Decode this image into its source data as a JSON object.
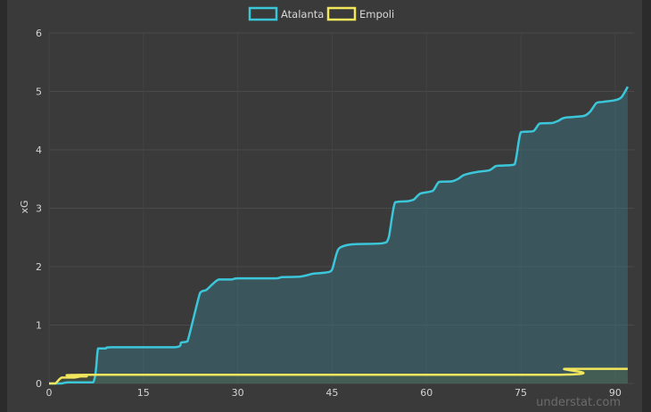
{
  "chart_data": {
    "type": "line",
    "ylabel": "xG",
    "xlim": [
      0,
      93
    ],
    "ylim": [
      0,
      6
    ],
    "x_ticks": [
      "0",
      "15",
      "30",
      "45",
      "60",
      "75",
      "90"
    ],
    "y_ticks": [
      "0",
      "1",
      "2",
      "3",
      "4",
      "5",
      "6"
    ],
    "legend_position": "top-center",
    "grid": true,
    "series": [
      {
        "name": "Atalanta",
        "color": "#3cc6d9",
        "fill": "rgba(60,120,135,0.45)",
        "points": [
          [
            0,
            0
          ],
          [
            2,
            0
          ],
          [
            3,
            0.02
          ],
          [
            7,
            0.02
          ],
          [
            7.8,
            0.6
          ],
          [
            9,
            0.6
          ],
          [
            10,
            0.62
          ],
          [
            20,
            0.62
          ],
          [
            21,
            0.7
          ],
          [
            22,
            0.72
          ],
          [
            24,
            1.55
          ],
          [
            25,
            1.6
          ],
          [
            26,
            1.7
          ],
          [
            27,
            1.78
          ],
          [
            29,
            1.78
          ],
          [
            30,
            1.8
          ],
          [
            36,
            1.8
          ],
          [
            37,
            1.82
          ],
          [
            40,
            1.83
          ],
          [
            42,
            1.88
          ],
          [
            44,
            1.9
          ],
          [
            45,
            1.95
          ],
          [
            46,
            2.3
          ],
          [
            48,
            2.38
          ],
          [
            53,
            2.4
          ],
          [
            54,
            2.5
          ],
          [
            55,
            3.1
          ],
          [
            57,
            3.12
          ],
          [
            58,
            3.15
          ],
          [
            59,
            3.25
          ],
          [
            61,
            3.3
          ],
          [
            62,
            3.45
          ],
          [
            64,
            3.46
          ],
          [
            65,
            3.5
          ],
          [
            66,
            3.57
          ],
          [
            68,
            3.62
          ],
          [
            70,
            3.65
          ],
          [
            71,
            3.72
          ],
          [
            72,
            3.73
          ],
          [
            74,
            3.75
          ],
          [
            75,
            4.3
          ],
          [
            77,
            4.32
          ],
          [
            78,
            4.45
          ],
          [
            80,
            4.46
          ],
          [
            81,
            4.5
          ],
          [
            82,
            4.55
          ],
          [
            85,
            4.58
          ],
          [
            86,
            4.65
          ],
          [
            87,
            4.8
          ],
          [
            88,
            4.82
          ],
          [
            90,
            4.85
          ],
          [
            91,
            4.9
          ],
          [
            92,
            5.08
          ]
        ]
      },
      {
        "name": "Empoli",
        "color": "#f2e75c",
        "fill": "rgba(90,110,70,0.35)",
        "points": [
          [
            0,
            0
          ],
          [
            1,
            0
          ],
          [
            2,
            0.1
          ],
          [
            4,
            0.1
          ],
          [
            5,
            0.12
          ],
          [
            6,
            0.12
          ],
          [
            7,
            0.15
          ],
          [
            81,
            0.15
          ],
          [
            82,
            0.25
          ],
          [
            92,
            0.25
          ]
        ]
      }
    ]
  },
  "watermark": "understat.com"
}
